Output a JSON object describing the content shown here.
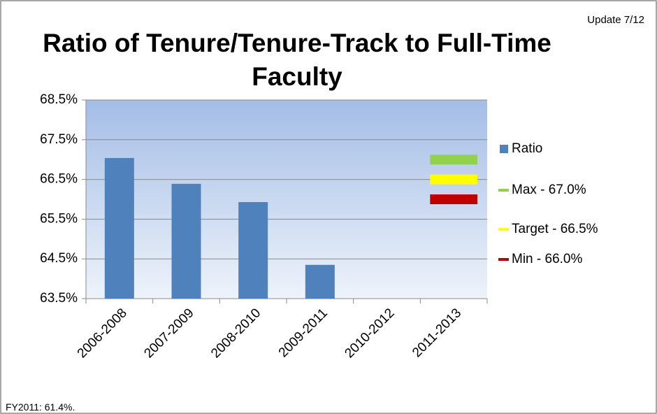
{
  "chart_data": {
    "type": "bar",
    "title": "Ratio of Tenure/Tenure-Track to Full-Time Faculty",
    "annotations": [
      "Update 7/12",
      "FY2011: 61.4%."
    ],
    "categories": [
      "2006-2008",
      "2007-2009",
      "2008-2010",
      "2009-2011",
      "2010-2012",
      "2011-2013"
    ],
    "series": [
      {
        "name": "Ratio",
        "type": "bar",
        "color": "#4f81bd",
        "values": [
          67.04,
          66.39,
          65.93,
          64.35,
          null,
          null
        ]
      },
      {
        "name": "Max - 67.0%",
        "type": "line",
        "color": "#92d050",
        "values": [
          null,
          null,
          null,
          null,
          null,
          67.0
        ]
      },
      {
        "name": "Target - 66.5%",
        "type": "line",
        "color": "#ffff00",
        "values": [
          null,
          null,
          null,
          null,
          null,
          66.5
        ]
      },
      {
        "name": "Min - 66.0%",
        "type": "line",
        "color": "#c00000",
        "values": [
          null,
          null,
          null,
          null,
          null,
          66.0
        ]
      }
    ],
    "ylim": [
      63.5,
      68.5
    ],
    "yticks": [
      {
        "value": 63.5,
        "label": "63.5%"
      },
      {
        "value": 64.5,
        "label": "64.5%"
      },
      {
        "value": 65.5,
        "label": "65.5%"
      },
      {
        "value": 66.5,
        "label": "66.5%"
      },
      {
        "value": 67.5,
        "label": "67.5%"
      },
      {
        "value": 68.5,
        "label": "68.5%"
      }
    ],
    "grid": true,
    "legend": "right"
  }
}
